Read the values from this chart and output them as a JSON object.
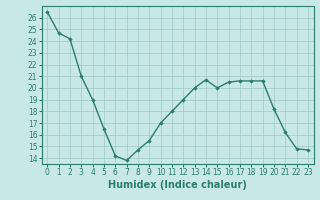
{
  "x": [
    0,
    1,
    2,
    3,
    4,
    5,
    6,
    7,
    8,
    9,
    10,
    11,
    12,
    13,
    14,
    15,
    16,
    17,
    18,
    19,
    20,
    21,
    22,
    23
  ],
  "y": [
    26.5,
    24.7,
    24.2,
    21.0,
    19.0,
    16.5,
    14.2,
    13.8,
    14.7,
    15.5,
    17.0,
    18.0,
    19.0,
    20.0,
    20.7,
    20.0,
    20.5,
    20.6,
    20.6,
    20.6,
    18.2,
    16.2,
    14.8,
    14.7
  ],
  "line_color": "#2d7d6e",
  "marker": "D",
  "marker_size": 1.8,
  "bg_color": "#c8e8e8",
  "grid_color": "#a0c8c8",
  "xlabel": "Humidex (Indice chaleur)",
  "ylim": [
    13.5,
    27.0
  ],
  "xlim": [
    -0.5,
    23.5
  ],
  "yticks": [
    14,
    15,
    16,
    17,
    18,
    19,
    20,
    21,
    22,
    23,
    24,
    25,
    26
  ],
  "xticks": [
    0,
    1,
    2,
    3,
    4,
    5,
    6,
    7,
    8,
    9,
    10,
    11,
    12,
    13,
    14,
    15,
    16,
    17,
    18,
    19,
    20,
    21,
    22,
    23
  ],
  "tick_label_fontsize": 5.5,
  "xlabel_fontsize": 7.0,
  "linewidth": 1.0
}
